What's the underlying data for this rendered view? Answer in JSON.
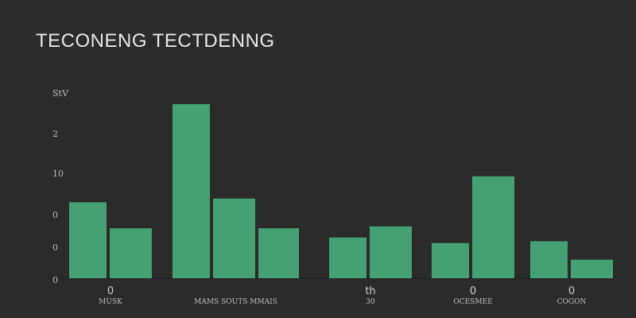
{
  "chart_data": {
    "type": "bar",
    "title": "TECONENG TECTDENNG",
    "y_tick_labels": [
      "0",
      "0",
      "0",
      "10",
      "2",
      "StV"
    ],
    "ylim": [
      0,
      100
    ],
    "grid": false,
    "legend": "none",
    "bar_color": "#45a173",
    "groups": [
      {
        "number": "0",
        "label": "MUSK",
        "values": [
          41,
          27
        ]
      },
      {
        "number": "",
        "label": "MAMS SOUTS MMAIS",
        "values": [
          94,
          43,
          27
        ]
      },
      {
        "number": "th",
        "label": "30",
        "values": [
          22,
          28
        ]
      },
      {
        "number": "0",
        "label": "OCESMEE",
        "values": [
          19,
          55
        ]
      },
      {
        "number": "0",
        "label": "COGON",
        "values": [
          20,
          10
        ]
      }
    ]
  }
}
